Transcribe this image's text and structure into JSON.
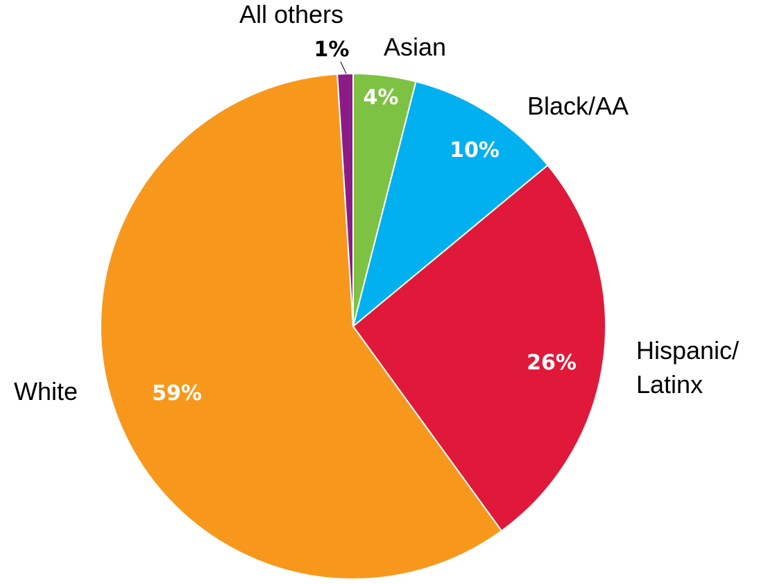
{
  "chart_data": {
    "type": "pie",
    "title": "",
    "start_angle_deg": 0,
    "direction": "clockwise",
    "slices": [
      {
        "category": "Asian",
        "value": 4,
        "label": "4%",
        "color": "#7dc242",
        "label_color": "#ffffff"
      },
      {
        "category": "Black/AA",
        "value": 10,
        "label": "10%",
        "color": "#00b0ef",
        "label_color": "#ffffff"
      },
      {
        "category": "Hispanic/ Latinx",
        "category_lines": [
          "Hispanic/",
          "Latinx"
        ],
        "value": 26,
        "label": "26%",
        "color": "#e0193a",
        "label_color": "#ffffff"
      },
      {
        "category": "White",
        "value": 59,
        "label": "59%",
        "color": "#f7981d",
        "label_color": "#ffffff"
      },
      {
        "category": "All others",
        "value": 1,
        "label": "1%",
        "color": "#8b1c87",
        "label_color": "#000000"
      }
    ]
  }
}
